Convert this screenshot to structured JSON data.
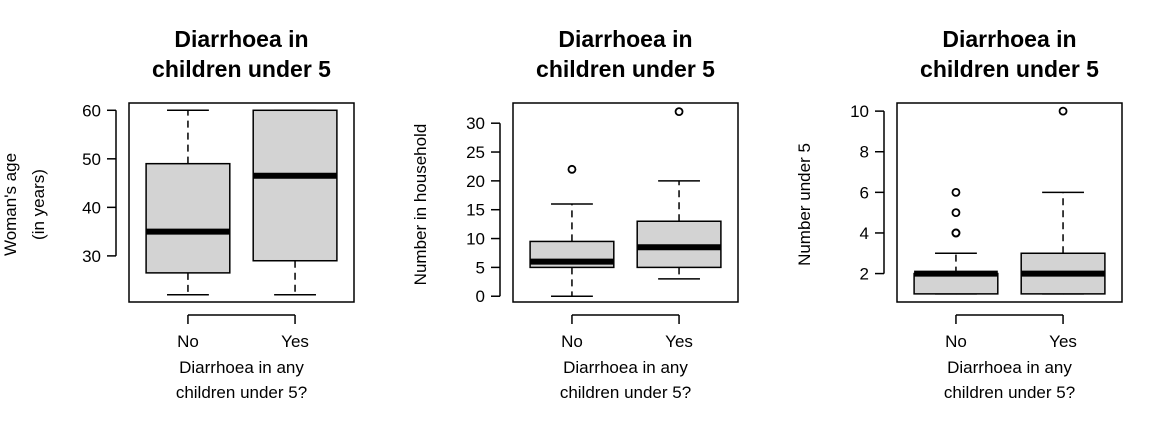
{
  "chart_data": [
    {
      "type": "box",
      "title": [
        "Diarrhoea in",
        "children under 5"
      ],
      "xlabel": [
        "Diarrhoea in any",
        "children under 5?"
      ],
      "ylabel": [
        "Woman's age",
        "(in years)"
      ],
      "categories": [
        "No",
        "Yes"
      ],
      "ylim": [
        20.5,
        61.5
      ],
      "yticks": [
        30,
        40,
        50,
        60
      ],
      "boxes": [
        {
          "category": "No",
          "whisker_low": 22,
          "q1": 26.5,
          "median": 35,
          "q3": 49,
          "whisker_high": 60,
          "outliers": []
        },
        {
          "category": "Yes",
          "whisker_low": 22,
          "q1": 29,
          "median": 46.5,
          "q3": 60,
          "whisker_high": 60,
          "outliers": []
        }
      ]
    },
    {
      "type": "box",
      "title": [
        "Diarrhoea in",
        "children under 5"
      ],
      "xlabel": [
        "Diarrhoea in any",
        "children under 5?"
      ],
      "ylabel": [
        "Number in household"
      ],
      "categories": [
        "No",
        "Yes"
      ],
      "ylim": [
        -1,
        33.5
      ],
      "yticks": [
        0,
        5,
        10,
        15,
        20,
        25,
        30
      ],
      "boxes": [
        {
          "category": "No",
          "whisker_low": 0,
          "q1": 5,
          "median": 6,
          "q3": 9.5,
          "whisker_high": 16,
          "outliers": [
            22
          ]
        },
        {
          "category": "Yes",
          "whisker_low": 3,
          "q1": 5,
          "median": 8.5,
          "q3": 13,
          "whisker_high": 20,
          "outliers": [
            32
          ]
        }
      ]
    },
    {
      "type": "box",
      "title": [
        "Diarrhoea in",
        "children under 5"
      ],
      "xlabel": [
        "Diarrhoea in any",
        "children under 5?"
      ],
      "ylabel": [
        "Number under 5"
      ],
      "categories": [
        "No",
        "Yes"
      ],
      "ylim": [
        0.6,
        10.4
      ],
      "yticks": [
        2,
        4,
        6,
        8,
        10
      ],
      "boxes": [
        {
          "category": "No",
          "whisker_low": 1,
          "q1": 1,
          "median": 2,
          "q3": 2,
          "whisker_high": 3,
          "outliers": [
            4,
            4,
            5,
            6
          ]
        },
        {
          "category": "Yes",
          "whisker_low": 1,
          "q1": 1,
          "median": 2,
          "q3": 3,
          "whisker_high": 6,
          "outliers": [
            10
          ]
        }
      ]
    }
  ],
  "colors": {
    "box_fill": "#d3d3d3",
    "stroke": "#000000"
  }
}
